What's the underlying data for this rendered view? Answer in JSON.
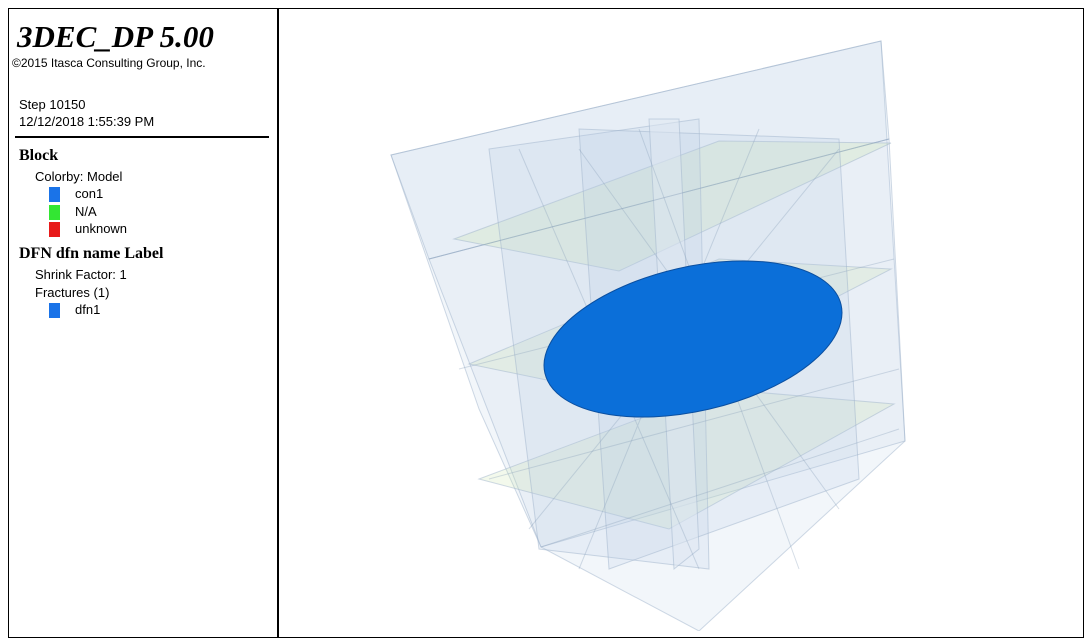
{
  "header": {
    "title": "3DEC_DP 5.00",
    "copyright": "©2015 Itasca Consulting Group, Inc.",
    "step": "Step 10150",
    "datetime": "12/12/2018 1:55:39 PM"
  },
  "legend": {
    "block": {
      "title": "Block",
      "colorby": "Colorby: Model",
      "items": [
        {
          "label": "con1",
          "color": "#1a73e8"
        },
        {
          "label": "N/A",
          "color": "#33e633"
        },
        {
          "label": "unknown",
          "color": "#e81a1a"
        }
      ]
    },
    "dfn": {
      "title": "DFN dfn name Label",
      "shrink": "Shrink Factor: 1",
      "fractures": "Fractures (1)",
      "items": [
        {
          "label": "dfn1",
          "color": "#1a73e8"
        }
      ]
    }
  }
}
